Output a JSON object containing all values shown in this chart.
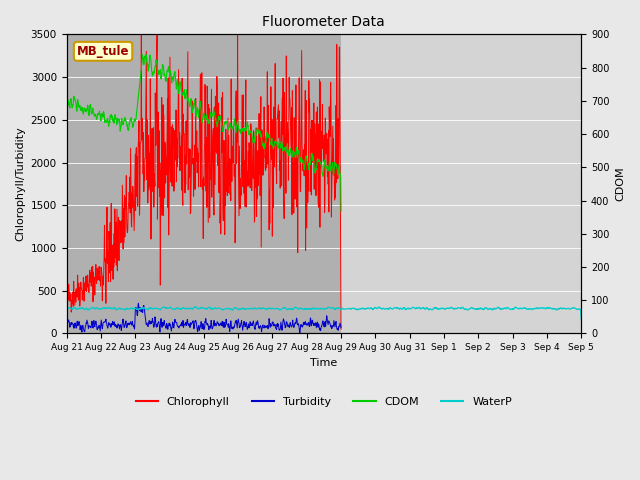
{
  "title": "Fluorometer Data",
  "xlabel": "Time",
  "ylabel_left": "Chlorophyll/Turbidity",
  "ylabel_right": "CDOM",
  "ylim_left": [
    0,
    3500
  ],
  "ylim_right": [
    0,
    900
  ],
  "yticks_left": [
    0,
    500,
    1000,
    1500,
    2000,
    2500,
    3000,
    3500
  ],
  "yticks_right": [
    0,
    100,
    200,
    300,
    400,
    500,
    600,
    700,
    800,
    900
  ],
  "xtick_labels": [
    "Aug 21",
    "Aug 22",
    "Aug 23",
    "Aug 24",
    "Aug 25",
    "Aug 26",
    "Aug 27",
    "Aug 28",
    "Aug 29",
    "Aug 30",
    "Aug 31",
    "Sep 1",
    "Sep 2",
    "Sep 3",
    "Sep 4",
    "Sep 5"
  ],
  "station_label": "MB_tule",
  "fig_facecolor": "#e8e8e8",
  "plot_facecolor": "#cccccc",
  "active_span_color": "#b0b0b0",
  "inactive_span_color": "#d4d4d4",
  "colors": {
    "Chlorophyll": "#ff0000",
    "Turbidity": "#0000cc",
    "CDOM": "#00cc00",
    "WaterP": "#00cccc"
  },
  "legend_labels": [
    "Chlorophyll",
    "Turbidity",
    "CDOM",
    "WaterP"
  ],
  "n_days_active": 8,
  "n_days_total": 15,
  "seed": 42
}
